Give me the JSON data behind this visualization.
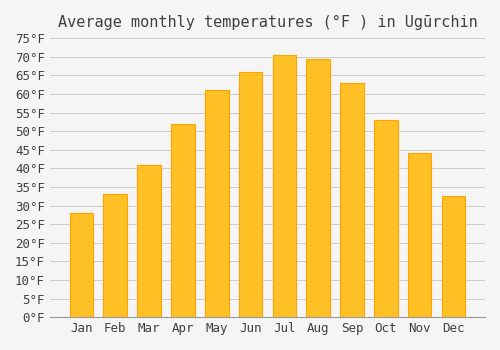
{
  "title": "Average monthly temperatures (°F ) in Ugūrchin",
  "months": [
    "Jan",
    "Feb",
    "Mar",
    "Apr",
    "May",
    "Jun",
    "Jul",
    "Aug",
    "Sep",
    "Oct",
    "Nov",
    "Dec"
  ],
  "values": [
    28,
    33,
    41,
    52,
    61,
    66,
    70.5,
    69.5,
    63,
    53,
    44,
    32.5
  ],
  "bar_color": "#FFC125",
  "bar_edge_color": "#FFA500",
  "background_color": "#F5F5F5",
  "grid_color": "#CCCCCC",
  "text_color": "#404040",
  "ylim": [
    0,
    75
  ],
  "yticks": [
    0,
    5,
    10,
    15,
    20,
    25,
    30,
    35,
    40,
    45,
    50,
    55,
    60,
    65,
    70,
    75
  ],
  "title_fontsize": 11,
  "tick_fontsize": 9
}
